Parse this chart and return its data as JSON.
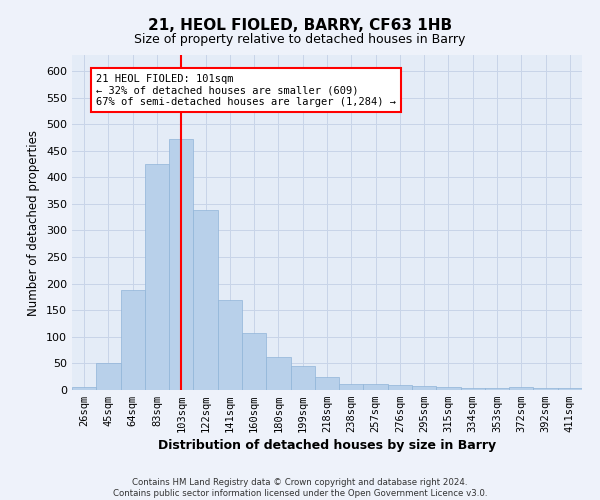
{
  "title": "21, HEOL FIOLED, BARRY, CF63 1HB",
  "subtitle": "Size of property relative to detached houses in Barry",
  "xlabel": "Distribution of detached houses by size in Barry",
  "ylabel": "Number of detached properties",
  "categories": [
    "26sqm",
    "45sqm",
    "64sqm",
    "83sqm",
    "103sqm",
    "122sqm",
    "141sqm",
    "160sqm",
    "180sqm",
    "199sqm",
    "218sqm",
    "238sqm",
    "257sqm",
    "276sqm",
    "295sqm",
    "315sqm",
    "334sqm",
    "353sqm",
    "372sqm",
    "392sqm",
    "411sqm"
  ],
  "values": [
    6,
    50,
    188,
    425,
    472,
    338,
    170,
    107,
    62,
    45,
    24,
    12,
    12,
    9,
    8,
    5,
    4,
    4,
    6,
    4,
    4
  ],
  "bar_color": "#b8d0ea",
  "bar_edge_color": "#90b4d8",
  "grid_color": "#c8d4e8",
  "vline_x_index": 4,
  "vline_color": "red",
  "annotation_text": "21 HEOL FIOLED: 101sqm\n← 32% of detached houses are smaller (609)\n67% of semi-detached houses are larger (1,284) →",
  "annotation_box_color": "white",
  "annotation_box_edge_color": "red",
  "ylim": [
    0,
    630
  ],
  "yticks": [
    0,
    50,
    100,
    150,
    200,
    250,
    300,
    350,
    400,
    450,
    500,
    550,
    600
  ],
  "footer_line1": "Contains HM Land Registry data © Crown copyright and database right 2024.",
  "footer_line2": "Contains public sector information licensed under the Open Government Licence v3.0.",
  "background_color": "#eef2fa",
  "axes_background_color": "#e4ecf7"
}
